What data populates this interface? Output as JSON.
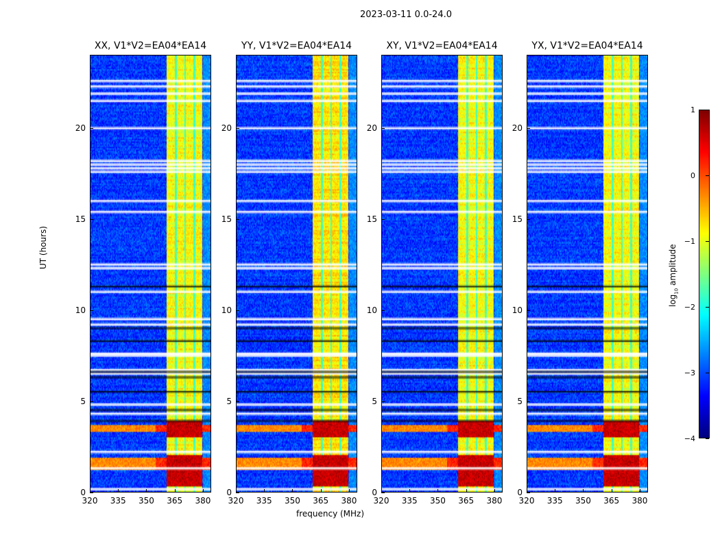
{
  "chart_data": {
    "type": "heatmap",
    "suptitle": "2023-03-11 0.0-24.0",
    "xlabel": "frequency (MHz)",
    "ylabel": "UT (hours)",
    "xlim": [
      320,
      384.4
    ],
    "ylim": [
      0,
      24
    ],
    "xticks": [
      "320",
      "335",
      "350",
      "365",
      "380"
    ],
    "xtick_values": [
      320,
      335,
      350,
      365,
      380
    ],
    "yticks": [
      "0",
      "5",
      "10",
      "15",
      "20"
    ],
    "ytick_values": [
      0,
      5,
      10,
      15,
      20
    ],
    "panels": [
      {
        "title": "XX, V1*V2=EA04*EA14"
      },
      {
        "title": "YY, V1*V2=EA04*EA14"
      },
      {
        "title": "XY, V1*V2=EA04*EA14"
      },
      {
        "title": "YX, V1*V2=EA04*EA14"
      }
    ],
    "colorbar": {
      "label": "log10 amplitude",
      "label_main": "log",
      "label_sub": "10",
      "label_rest": " amplitude",
      "range": [
        -4,
        1
      ],
      "ticks": [
        "1",
        "0",
        "−1",
        "−2",
        "−3",
        "−4"
      ],
      "tick_values": [
        1,
        0,
        -1,
        -2,
        -3,
        -4
      ],
      "colormap": "jet"
    },
    "features": {
      "background_level": -3.1,
      "bright_band_mhz": [
        361,
        380
      ],
      "bright_band_level": -0.9,
      "band_gaps_mhz": [
        365.8,
        370.8,
        375.8
      ],
      "strong_rfi_hours": [
        [
          0.3,
          2.0
        ],
        [
          3.0,
          3.9
        ]
      ],
      "broadband_rfi_hours": [
        [
          1.2,
          1.9
        ],
        [
          3.3,
          3.7
        ]
      ],
      "flagged_hours": [
        0.15,
        1.3,
        2.2,
        4.3,
        4.8,
        6.5,
        6.7,
        7.5,
        7.6,
        9.2,
        9.5,
        11.0,
        12.3,
        12.5,
        15.4,
        16.0,
        17.6,
        17.8,
        18.0,
        18.2,
        20.0,
        21.5,
        21.9,
        22.3,
        22.6
      ],
      "dark_flag_hours": [
        3.9,
        4.5,
        5.5,
        6.3,
        6.6,
        8.3,
        9.0,
        11.3
      ]
    }
  }
}
